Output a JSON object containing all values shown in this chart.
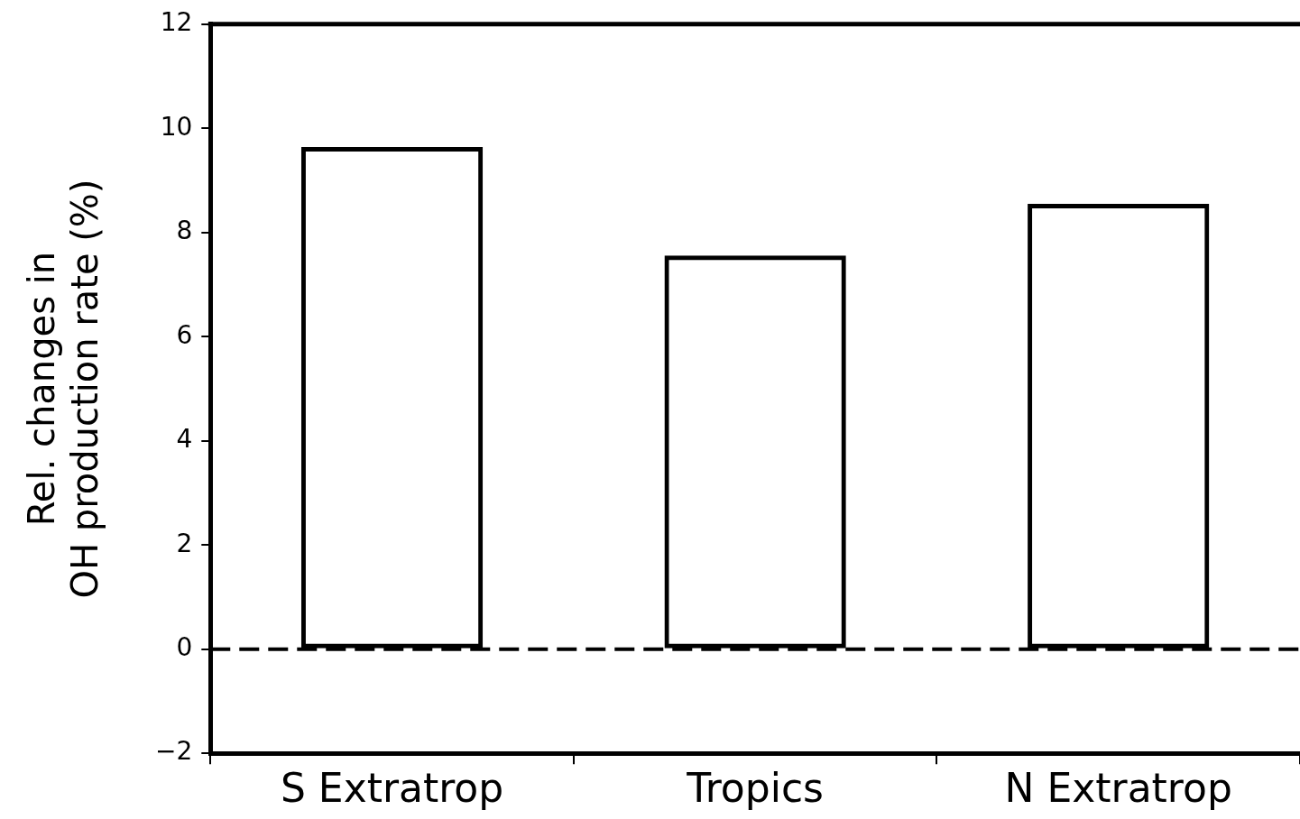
{
  "chart_data": {
    "type": "bar",
    "ylabel": "Rel. changes in\nOH production rate (%)",
    "categories": [
      "S Extratrop",
      "Tropics",
      "N Extratrop"
    ],
    "values": [
      9.64,
      7.56,
      8.55
    ],
    "color": "#000000",
    "ylim": [
      -2,
      12
    ],
    "yticks": [
      -2,
      0,
      2,
      4,
      6,
      8,
      10,
      12
    ],
    "grid": false,
    "legend": false,
    "ref_lines": [
      {
        "axis": "y",
        "value": 0,
        "color": "#000000",
        "line_style": "dashed"
      }
    ]
  }
}
